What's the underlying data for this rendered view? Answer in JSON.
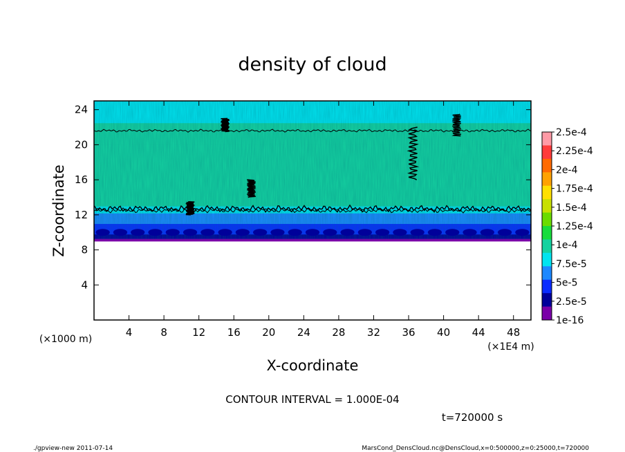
{
  "chart_data": {
    "type": "heatmap",
    "title": "density of cloud",
    "xlabel": "X-coordinate",
    "ylabel": "Z-coordinate",
    "x_unit": "(×1E4 m)",
    "y_unit": "(×1000 m)",
    "xlim": [
      0,
      50
    ],
    "ylim": [
      0,
      25
    ],
    "x_ticks": [
      "4",
      "8",
      "12",
      "16",
      "20",
      "24",
      "28",
      "32",
      "36",
      "40",
      "44",
      "48"
    ],
    "x_tick_values": [
      4,
      8,
      12,
      16,
      20,
      24,
      28,
      32,
      36,
      40,
      44,
      48
    ],
    "y_ticks": [
      "4",
      "8",
      "12",
      "16",
      "20",
      "24"
    ],
    "y_tick_values": [
      4,
      8,
      12,
      16,
      20,
      24
    ],
    "profile": [
      {
        "z": 9.0,
        "value": 1e-16
      },
      {
        "z": 9.3,
        "value": 1.5e-05
      },
      {
        "z": 9.8,
        "value": 3.2e-05
      },
      {
        "z": 10.4,
        "value": 4e-05
      },
      {
        "z": 11.0,
        "value": 5.5e-05
      },
      {
        "z": 11.6,
        "value": 6.5e-05
      },
      {
        "z": 12.2,
        "value": 8e-05
      },
      {
        "z": 13.0,
        "value": 0.000105
      },
      {
        "z": 16.0,
        "value": 0.00011
      },
      {
        "z": 20.0,
        "value": 0.000108
      },
      {
        "z": 21.5,
        "value": 0.0001
      },
      {
        "z": 22.5,
        "value": 8.5e-05
      },
      {
        "z": 23.5,
        "value": 8e-05
      },
      {
        "z": 25.0,
        "value": 7.8e-05
      }
    ],
    "contour_levels": [
      0.0001
    ],
    "contour_interval": "CONTOUR INTERVAL = 1.000E-04",
    "time_label": "t=720000 s",
    "legend": {
      "position": "right",
      "labels": [
        "2.5e-4",
        "2.25e-4",
        "2e-4",
        "1.75e-4",
        "1.5e-4",
        "1.25e-4",
        "1e-4",
        "7.5e-5",
        "5e-5",
        "2.5e-5",
        "1e-16"
      ],
      "colors": [
        "#ff9aa6",
        "#ff3b3b",
        "#ff6a00",
        "#ffa200",
        "#ffe000",
        "#c8e000",
        "#6bdc00",
        "#18dc3c",
        "#14d2a0",
        "#00e4f0",
        "#1c88ff",
        "#0a2cff",
        "#00009a",
        "#7a00a8"
      ]
    },
    "grid": false
  },
  "footer": {
    "left": "./gpview-new   2011-07-14",
    "right": "MarsCond_DensCloud.nc@DensCloud,x=0:500000,z=0:25000,t=720000"
  }
}
